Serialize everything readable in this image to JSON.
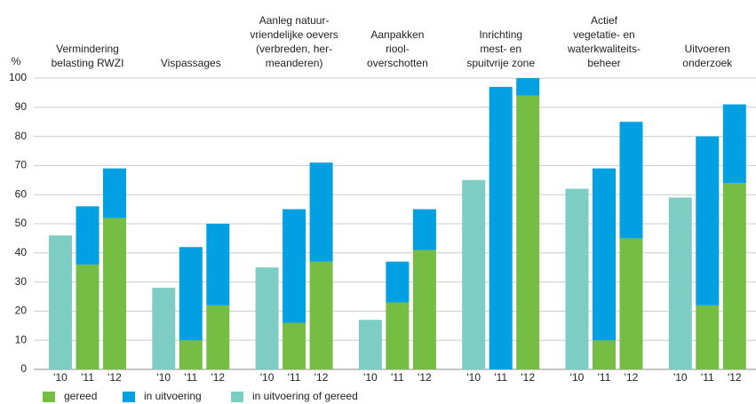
{
  "chart_data": {
    "type": "grouped-stacked-bar",
    "y_label": "%",
    "groups": [
      {
        "lines": [
          "Vermindering",
          "belasting RWZI"
        ]
      },
      {
        "lines": [
          "Vispassages"
        ]
      },
      {
        "lines": [
          "Aanleg natuur-",
          "vriendelijke oevers",
          "(verbreden, her-",
          "meanderen)"
        ]
      },
      {
        "lines": [
          "Aanpakken",
          "riool-",
          "overschotten"
        ]
      },
      {
        "lines": [
          "Inrichting",
          "mest- en",
          "spuitvrije zone"
        ]
      },
      {
        "lines": [
          "Actief",
          "vegetatie- en",
          "waterkwaliteits-",
          "beheer"
        ]
      },
      {
        "lines": [
          "Uitvoeren",
          "onderzoek"
        ]
      }
    ],
    "categories": [
      "'10",
      "'11",
      "'12",
      "'10",
      "'11",
      "'12",
      "'10",
      "'11",
      "'12",
      "'10",
      "'11",
      "'12",
      "'10",
      "'11",
      "'12",
      "'10",
      "'11",
      "'12",
      "'10",
      "'11",
      "'12"
    ],
    "series": [
      {
        "name": "gereed",
        "color": "#76bd43",
        "values": [
          null,
          36,
          52,
          null,
          10,
          22,
          null,
          16,
          37,
          null,
          23,
          41,
          null,
          null,
          94,
          null,
          10,
          45,
          null,
          22,
          64
        ]
      },
      {
        "name": "in uitvoering",
        "color": "#00a0e3",
        "values": [
          null,
          20,
          17,
          null,
          32,
          28,
          null,
          39,
          34,
          null,
          14,
          14,
          null,
          97,
          6,
          null,
          59,
          40,
          null,
          58,
          27
        ]
      },
      {
        "name": "in uitvoering of gereed",
        "color": "#7ecdc4",
        "values": [
          46,
          null,
          null,
          28,
          null,
          null,
          35,
          null,
          null,
          17,
          null,
          null,
          65,
          null,
          null,
          62,
          null,
          null,
          59,
          null,
          null
        ]
      }
    ],
    "ylim": [
      0,
      100
    ],
    "yticks": [
      0,
      10,
      20,
      30,
      40,
      50,
      60,
      70,
      80,
      90,
      100
    ],
    "grid": true
  }
}
